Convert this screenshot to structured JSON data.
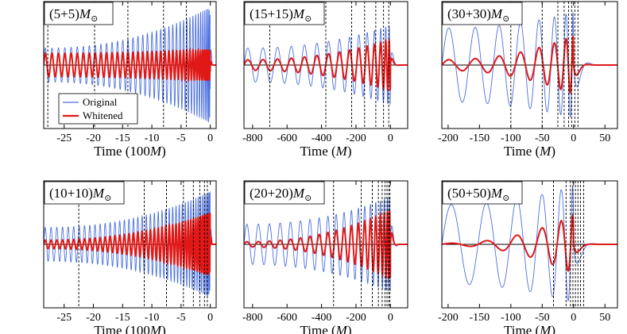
{
  "chart_data": [
    {
      "type": "line",
      "title": "(5+5)M⊙",
      "title_prefix": "(5+5)",
      "title_unit": "M",
      "title_sub": "⊙",
      "xlabel": "Time (100M)",
      "xlabel_prefix": "Time (100",
      "xlabel_unit": "M",
      "xlabel_suffix": ")",
      "xlim": [
        -28.5,
        1
      ],
      "ylim": [
        -1.2,
        1.2
      ],
      "xticks": [
        -25,
        -20,
        -15,
        -10,
        -5,
        0
      ],
      "xtick_labels": [
        "-25",
        "-20",
        "-15",
        "-10",
        "-5",
        "0"
      ],
      "vlines": [
        -27.8,
        -19.8,
        -14.1,
        -8.0,
        -4.1
      ],
      "waveform": {
        "cycles": 40,
        "orig_amp_start": 0.32,
        "orig_amp_end": 1.1,
        "white_amp_start": 0.22,
        "white_amp_end": 0.3,
        "chirp": 1.0
      },
      "legend": {
        "visible": true,
        "entries": [
          "Original",
          "Whitened"
        ]
      },
      "series": [
        {
          "name": "Original",
          "color": "#4a6fe0"
        },
        {
          "name": "Whitened",
          "color": "#e01818"
        }
      ]
    },
    {
      "type": "line",
      "title": "(15+15)M⊙",
      "title_prefix": "(15+15)",
      "title_unit": "M",
      "title_sub": "⊙",
      "xlabel": "Time (M)",
      "xlabel_prefix": "Time (",
      "xlabel_unit": "M",
      "xlabel_suffix": ")",
      "xlim": [
        -850,
        100
      ],
      "ylim": [
        -1.2,
        1.2
      ],
      "xticks": [
        -800,
        -600,
        -400,
        -200,
        0
      ],
      "xtick_labels": [
        "-800",
        "-600",
        "-400",
        "-200",
        "0"
      ],
      "vlines": [
        -700,
        -375,
        -225,
        -150,
        -85,
        -40,
        -10
      ],
      "waveform": {
        "cycles": 15,
        "orig_amp_start": 0.32,
        "orig_amp_end": 0.75,
        "white_amp_start": 0.1,
        "white_amp_end": 0.48,
        "chirp": 1.0
      },
      "legend": {
        "visible": false,
        "entries": []
      },
      "series": [
        {
          "name": "Original",
          "color": "#4a6fe0"
        },
        {
          "name": "Whitened",
          "color": "#e01818"
        }
      ]
    },
    {
      "type": "line",
      "title": "(30+30)M⊙",
      "title_prefix": "(30+30)",
      "title_unit": "M",
      "title_sub": "⊙",
      "xlabel": "Time (M)",
      "xlabel_prefix": "Time (",
      "xlabel_unit": "M",
      "xlabel_suffix": ")",
      "xlim": [
        -210,
        70
      ],
      "ylim": [
        -1.2,
        1.2
      ],
      "xticks": [
        -200,
        -150,
        -100,
        -50,
        0,
        50
      ],
      "xtick_labels": [
        "-200",
        "-150",
        "-100",
        "-50",
        "0",
        "50"
      ],
      "vlines": [
        -100,
        -50,
        -25,
        -15,
        -8,
        -3,
        2,
        7
      ],
      "waveform": {
        "cycles": 7.5,
        "orig_amp_start": 0.7,
        "orig_amp_end": 1.0,
        "white_amp_start": 0.1,
        "white_amp_end": 0.55,
        "chirp": 1.0
      },
      "legend": {
        "visible": false,
        "entries": []
      },
      "series": [
        {
          "name": "Original",
          "color": "#4a6fe0"
        },
        {
          "name": "Whitened",
          "color": "#e01818"
        }
      ]
    },
    {
      "type": "line",
      "title": "(10+10)M⊙",
      "title_prefix": "(10+10)",
      "title_unit": "M",
      "title_sub": "⊙",
      "xlabel": "Time (100M)",
      "xlabel_prefix": "Time (100",
      "xlabel_unit": "M",
      "xlabel_suffix": ")",
      "xlim": [
        -28.5,
        1
      ],
      "ylim": [
        -1.2,
        1.2
      ],
      "xticks": [
        -25,
        -20,
        -15,
        -10,
        -5,
        0
      ],
      "xtick_labels": [
        "-25",
        "-20",
        "-15",
        "-10",
        "-5",
        "0"
      ],
      "vlines": [
        -22.5,
        -11.3,
        -7.5,
        -4.6,
        -2.9,
        -1.8,
        -1.0,
        -0.5
      ],
      "waveform": {
        "cycles": 45,
        "orig_amp_start": 0.32,
        "orig_amp_end": 1.0,
        "white_amp_start": 0.08,
        "white_amp_end": 0.6,
        "chirp": 1.0
      },
      "legend": {
        "visible": false,
        "entries": []
      },
      "series": [
        {
          "name": "Original",
          "color": "#4a6fe0"
        },
        {
          "name": "Whitened",
          "color": "#e01818"
        }
      ]
    },
    {
      "type": "line",
      "title": "(20+20)M⊙",
      "title_prefix": "(20+20)",
      "title_unit": "M",
      "title_sub": "⊙",
      "xlabel": "Time (M)",
      "xlabel_prefix": "Time (",
      "xlabel_unit": "M",
      "xlabel_suffix": ")",
      "xlim": [
        -850,
        100
      ],
      "ylim": [
        -1.2,
        1.2
      ],
      "xticks": [
        -800,
        -600,
        -400,
        -200,
        0
      ],
      "xtick_labels": [
        "-800",
        "-600",
        "-400",
        "-200",
        "0"
      ],
      "vlines": [
        -330,
        -170,
        -105,
        -70,
        -48,
        -32,
        -20,
        -10,
        -3
      ],
      "waveform": {
        "cycles": 20,
        "orig_amp_start": 0.38,
        "orig_amp_end": 0.9,
        "white_amp_start": 0.05,
        "white_amp_end": 0.65,
        "chirp": 1.0
      },
      "legend": {
        "visible": false,
        "entries": []
      },
      "series": [
        {
          "name": "Original",
          "color": "#4a6fe0"
        },
        {
          "name": "Whitened",
          "color": "#e01818"
        }
      ]
    },
    {
      "type": "line",
      "title": "(50+50)M⊙",
      "title_prefix": "(50+50)",
      "title_unit": "M",
      "title_sub": "⊙",
      "xlabel": "Time (M)",
      "xlabel_prefix": "Time (",
      "xlabel_unit": "M",
      "xlabel_suffix": ")",
      "xlim": [
        -210,
        70
      ],
      "ylim": [
        -1.2,
        1.2
      ],
      "xticks": [
        -200,
        -150,
        -100,
        -50,
        0,
        50
      ],
      "xtick_labels": [
        "-200",
        "-150",
        "-100",
        "-50",
        "0",
        "50"
      ],
      "vlines": [
        -32,
        -12,
        -5,
        -1,
        3,
        7,
        11,
        16
      ],
      "waveform": {
        "cycles": 5.5,
        "orig_amp_start": 0.75,
        "orig_amp_end": 1.1,
        "white_amp_start": 0.02,
        "white_amp_end": 0.55,
        "chirp": 1.0
      },
      "legend": {
        "visible": false,
        "entries": []
      },
      "series": [
        {
          "name": "Original",
          "color": "#4a6fe0"
        },
        {
          "name": "Whitened",
          "color": "#e01818"
        }
      ]
    }
  ]
}
